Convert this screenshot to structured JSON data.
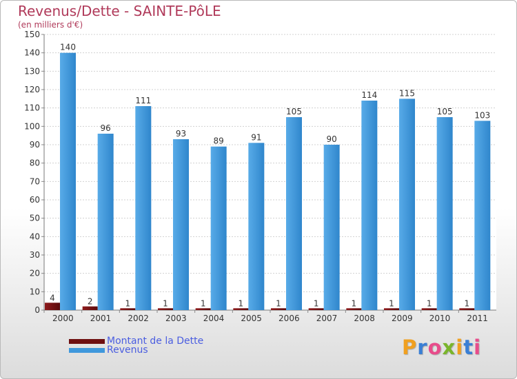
{
  "header": {
    "title": "Revenus/Dette - SAINTE-PôLE",
    "subtitle": "(en milliers d'€)"
  },
  "chart_data": {
    "type": "bar",
    "title": "Revenus/Dette - SAINTE-PôLE",
    "ylabel": "(en milliers d'€)",
    "xlabel": "",
    "categories": [
      "2000",
      "2001",
      "2002",
      "2003",
      "2004",
      "2005",
      "2006",
      "2007",
      "2008",
      "2009",
      "2010",
      "2011"
    ],
    "series": [
      {
        "name": "Montant de la Dette",
        "color": "#6e0f10",
        "values": [
          4,
          2,
          1,
          1,
          1,
          1,
          1,
          1,
          1,
          1,
          1,
          1
        ]
      },
      {
        "name": "Revenus",
        "color": "#3f98dc",
        "values": [
          140,
          96,
          111,
          93,
          89,
          91,
          105,
          90,
          114,
          115,
          105,
          103
        ]
      }
    ],
    "ylim": [
      0,
      150
    ],
    "ytick_step": 10,
    "yticks": [
      "0",
      "10",
      "20",
      "30",
      "40",
      "50",
      "60",
      "70",
      "80",
      "90",
      "100",
      "110",
      "120",
      "130",
      "140",
      "150"
    ],
    "grid": true,
    "legend_position": "bottom-left"
  },
  "legend": {
    "items": [
      {
        "label": "Montant de la Dette",
        "color": "#6e0f10"
      },
      {
        "label": "Revenus",
        "color": "#3f98dc"
      }
    ]
  },
  "logo": {
    "text": "Proxiti",
    "letters": [
      "P",
      "r",
      "o",
      "x",
      "i",
      "t",
      "i"
    ],
    "colors": [
      "#f0a020",
      "#3a7fd5",
      "#e84c8b",
      "#7ab52b",
      "#f0a020",
      "#3a7fd5",
      "#e84c8b"
    ]
  }
}
